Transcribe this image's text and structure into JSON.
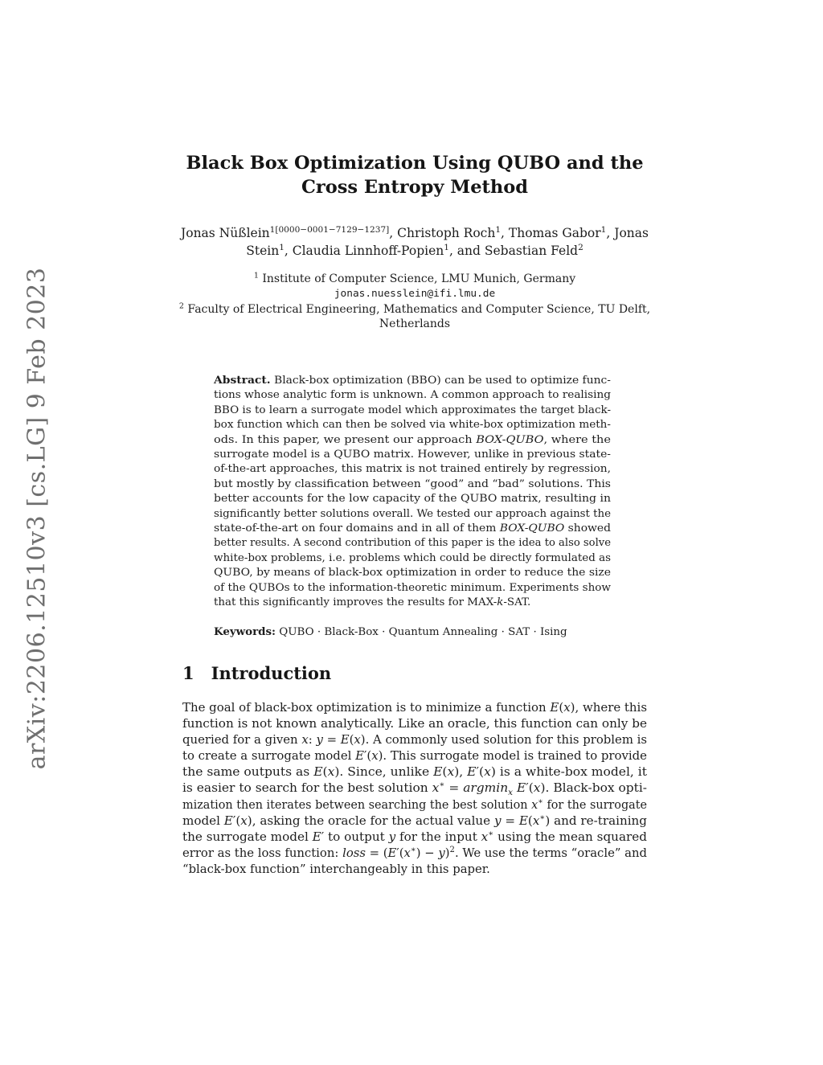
{
  "page": {
    "background": "#ffffff",
    "text_color": "#1d1d1d"
  },
  "arxiv_watermark": {
    "text": "arXiv:2206.12510v3 [cs.LG] 9 Feb 2023",
    "color": "#6f6f6f"
  },
  "title": {
    "lines": [
      "Black Box Optimization Using QUBO and the",
      "Cross Entropy Method"
    ]
  },
  "authors": {
    "lines": [
      "Jonas Nüßlein^{1[0000−0001−7129−1237]}, Christoph Roch^{1}, Thomas Gabor^{1}, Jonas",
      "Stein^{1}, Claudia Linnhoff-Popien^{1}, and Sebastian Feld^{2}"
    ]
  },
  "affiliations": {
    "lines": [
      "^{1}  Institute of Computer Science, LMU Munich, Germany",
      {
        "t": "jonas.nuesslein@ifi.lmu.de",
        "mono": true
      },
      "^{2}  Faculty of Electrical Engineering, Mathematics and Computer Science, TU Delft,",
      "Netherlands"
    ]
  },
  "abstract": {
    "lines": [
      "**Abstract.** Black-box optimization (BBO) can be used to optimize func-",
      "tions whose analytic form is unknown. A common approach to realising",
      "BBO is to learn a surrogate model which approximates the target black-",
      "box function which can then be solved via white-box optimization meth-",
      "ods. In this paper, we present our approach *BOX-QUBO*, where the",
      "surrogate model is a QUBO matrix. However, unlike in previous state-",
      "of-the-art approaches, this matrix is not trained entirely by regression,",
      "but mostly by classification between “good” and “bad” solutions. This",
      "better accounts for the low capacity of the QUBO matrix, resulting in",
      "significantly better solutions overall. We tested our approach against the",
      "state-of-the-art on four domains and in all of them *BOX-QUBO* showed",
      "better results. A second contribution of this paper is the idea to also solve",
      "white-box problems, i.e. problems which could be directly formulated as",
      "QUBO, by means of black-box optimization in order to reduce the size",
      "of the QUBOs to the information-theoretic minimum. Experiments show",
      {
        "t": "that this significantly improves the results for MAX-*k*-SAT.",
        "last": true
      }
    ]
  },
  "keywords": {
    "label": "Keywords:",
    "text": "QUBO · Black-Box · Quantum Annealing · SAT · Ising"
  },
  "section": {
    "number": "1",
    "title": "Introduction"
  },
  "intro": {
    "lines": [
      "The goal of black-box optimization is to minimize a function *E*(*x*), where this",
      "function is not known analytically. Like an oracle, this function can only be",
      "queried for a given *x*: *y* = *E*(*x*). A commonly used solution for this problem is",
      "to create a surrogate model *E*′(*x*). This surrogate model is trained to provide",
      "the same outputs as *E*(*x*). Since, unlike *E*(*x*), *E*′(*x*) is a white-box model, it",
      "is easier to search for the best solution *x*^{∗} = *argmin*_{*x*} *E*′(*x*). Black-box opti-",
      "mization then iterates between searching the best solution *x*^{∗} for the surrogate",
      "model *E*′(*x*), asking the oracle for the actual value *y* = *E*(*x*^{∗}) and re-training",
      "the surrogate model *E*′ to output *y* for the input *x*^{∗} using the mean squared",
      "error as the loss function: *loss* = (*E*′(*x*^{∗}) − *y*)^{2}. We use the terms “oracle” and",
      {
        "t": "“black-box function” interchangeably in this paper.",
        "last": true
      }
    ]
  }
}
